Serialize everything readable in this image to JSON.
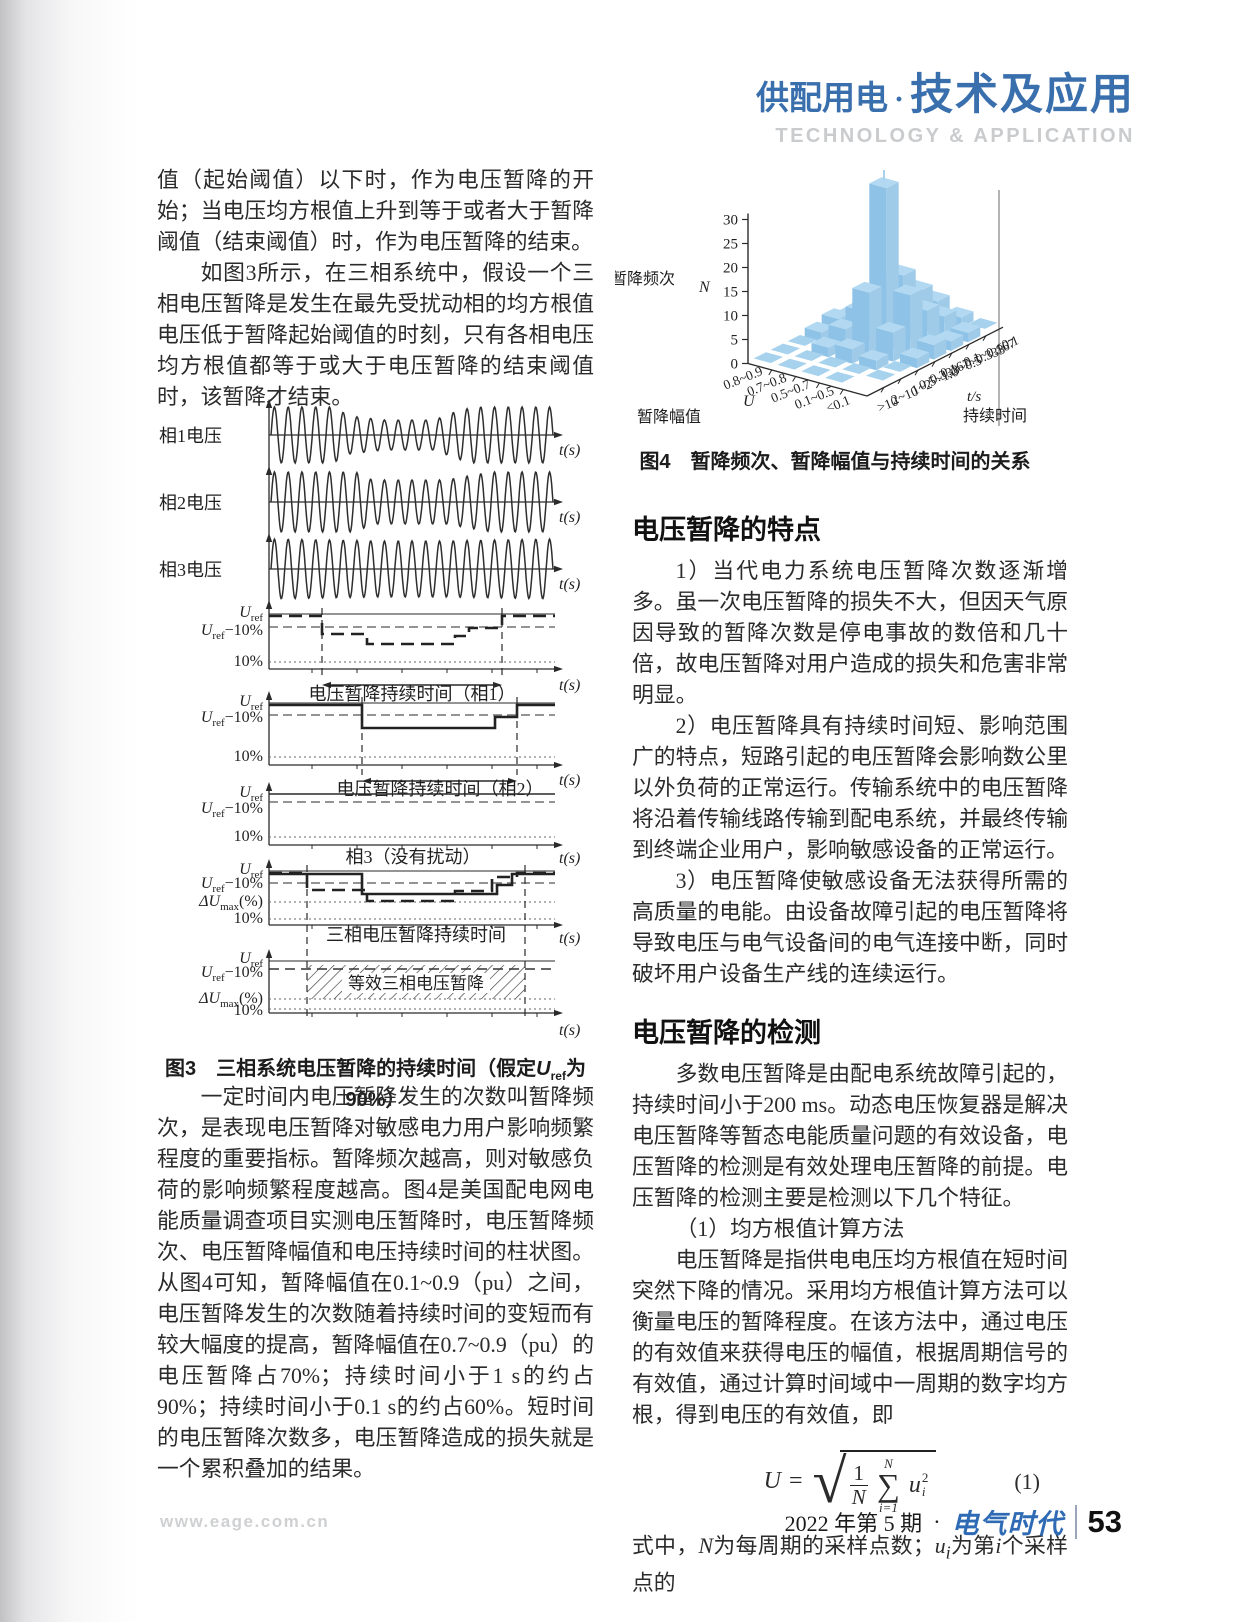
{
  "header": {
    "section": "供配用电",
    "dot": "·",
    "topic": "技术及应用",
    "subtitle": "TECHNOLOGY & APPLICATION"
  },
  "left_column": {
    "para1": "值（起始阈值）以下时，作为电压暂降的开始；当电压均方根值上升到等于或者大于暂降阈值（结束阈值）时，作为电压暂降的结束。",
    "para2": "如图3所示，在三相系统中，假设一个三相电压暂降是发生在最先受扰动相的均方根值电压低于暂降起始阈值的时刻，只有各相电压均方根值都等于或大于电压暂降的结束阈值时，该暂降才结束。",
    "para3": "一定时间内电压暂降发生的次数叫暂降频次，是表现电压暂降对敏感电力用户影响频繁程度的重要指标。暂降频次越高，则对敏感负荷的影响频繁程度越高。图4是美国配电网电能质量调查项目实测电压暂降时，电压暂降频次、电压暂降幅值和电压持续时间的柱状图。从图4可知，暂降幅值在0.1~0.9（pu）之间，电压暂降发生的次数随着持续时间的变短而有较大幅度的提高，暂降幅值在0.7~0.9（pu）的电压暂降占70%；持续时间小于1 s的约占90%；持续时间小于0.1 s的约占60%。短时间的电压暂降次数多，电压暂降造成的损失就是一个累积叠加的结果。"
  },
  "fig3": {
    "phase_labels": [
      "相1电压",
      "相2电压",
      "相3电压"
    ],
    "time_label": "t(s)",
    "levels": {
      "uref": {
        "base": "U",
        "sub": "ref",
        "rest": ""
      },
      "uref_minus": {
        "base": "U",
        "sub": "ref",
        "rest": "−10%"
      },
      "dumax": {
        "base": "ΔU",
        "sub": "max",
        "rest": "(%)"
      },
      "ten": "10%"
    },
    "annotations": {
      "p1": "电压暂降持续时间（相1）",
      "p2": "电压暂降持续时间（相2）",
      "p3": "相3（没有扰动）",
      "p4": "三相电压暂降持续时间",
      "equiv": "等效三相电压暂降"
    },
    "caption": [
      {
        "t": "图3　三相系统电压暂降的持续时间（假定"
      },
      {
        "t": "U",
        "i": true
      },
      {
        "t": "ref",
        "sub": true
      },
      {
        "t": "为90%）"
      }
    ]
  },
  "fig4_caption": "图4　暂降频次、暂降幅值与持续时间的关系",
  "chart_data": {
    "type": "bar",
    "subtype": "3d-bar-histogram",
    "title": "暂降频次、暂降幅值与持续时间的关系",
    "z_axis": {
      "label_cn": "暂降频次",
      "label_symbol": "N",
      "ticks": [
        0,
        5,
        10,
        15,
        20,
        25,
        30
      ],
      "max": 30
    },
    "magnitude_axis": {
      "title_cn": "暂降幅值",
      "symbol": "U",
      "categories": [
        "0.8~0.9",
        "0.7~0.8",
        "0.5~0.7",
        "0.1~0.5",
        "<0.1"
      ]
    },
    "duration_axis": {
      "title_cn": "持续时间",
      "symbol": "t/s",
      "categories": [
        ">10",
        "2~10",
        "1~2",
        "0.5~1.0",
        "0.333~0.5",
        "0.167~0.333",
        "0.1~0.167",
        "<0.1"
      ]
    },
    "bar_color": "#a6d2ee",
    "values": [
      [
        1,
        1,
        1,
        2,
        3,
        2,
        3,
        2
      ],
      [
        1,
        1,
        2,
        4,
        6,
        4,
        5,
        3
      ],
      [
        1,
        1,
        3,
        13,
        33,
        13,
        8,
        4
      ],
      [
        1,
        1,
        2,
        6,
        12,
        7,
        4,
        2
      ],
      [
        0,
        1,
        1,
        2,
        3,
        2,
        2,
        1
      ]
    ]
  },
  "right_column": {
    "h1": "电压暂降的特点",
    "p1": "1）当代电力系统电压暂降次数逐渐增多。虽一次电压暂降的损失不大，但因天气原因导致的暂降次数是停电事故的数倍和几十倍，故电压暂降对用户造成的损失和危害非常明显。",
    "p2": "2）电压暂降具有持续时间短、影响范围广的特点，短路引起的电压暂降会影响数公里以外负荷的正常运行。传输系统中的电压暂降将沿着传输线路传输到配电系统，并最终传输到终端企业用户，影响敏感设备的正常运行。",
    "p3": "3）电压暂降使敏感设备无法获得所需的高质量的电能。由设备故障引起的电压暂降将导致电压与电气设备间的电气连接中断，同时破坏用户设备生产线的连续运行。",
    "h2": "电压暂降的检测",
    "p4": "多数电压暂降是由配电系统故障引起的，持续时间小于200 ms。动态电压恢复器是解决电压暂降等暂态电能质量问题的有效设备，电压暂降的检测是有效处理电压暂降的前提。电压暂降的检测主要是检测以下几个特征。",
    "p5": "（1）均方根值计算方法",
    "p6": "电压暂降是指供电电压均方根值在短时间突然下降的情况。采用均方根值计算方法可以衡量电压的暂降程度。在该方法中，通过电压的有效值来获得电压的幅值，根据周期信号的有效值，通过计算时间域中一周期的数字均方根，得到电压的有效值，即",
    "p7": [
      {
        "t": "式中，"
      },
      {
        "t": "N",
        "i": true
      },
      {
        "t": "为每周期的采样点数；"
      },
      {
        "t": "u",
        "i": true
      },
      {
        "t": "i",
        "sub": true,
        "i": true
      },
      {
        "t": "为第"
      },
      {
        "t": "i",
        "i": true
      },
      {
        "t": "个采样点的"
      }
    ]
  },
  "equation": {
    "lhs": "U",
    "rel": "=",
    "frac_num": "1",
    "frac_den": "N",
    "sum_top": "N",
    "sum_sym": "∑",
    "sum_bot": "i=1",
    "term_base": "u",
    "term_sup": "2",
    "term_sub": "i",
    "number": "(1)"
  },
  "footer": {
    "url": "www.eage.com.cn",
    "issue": "2022 年第 5 期",
    "dot": "·",
    "brand": "电气时代",
    "page_no": "53"
  },
  "colors": {
    "header_blue": "#3a6fad",
    "brand_blue": "#2e6bb4",
    "bar_blue": "#a6d2ee",
    "light_gray": "#c9cbcd"
  }
}
